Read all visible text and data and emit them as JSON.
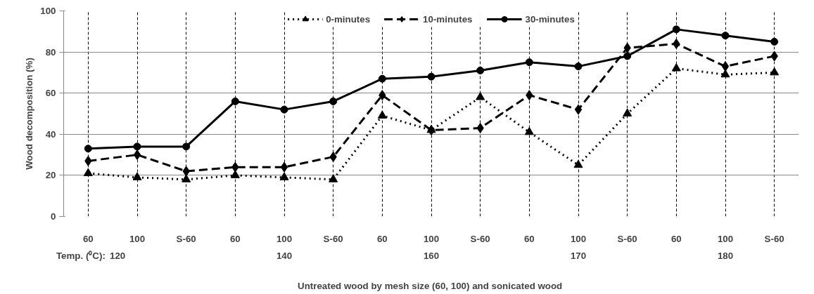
{
  "chart_data": {
    "type": "line",
    "xlabel": "Untreated wood by mesh size (60, 100) and sonicated  wood",
    "ylabel": "Wood decomposition (%)",
    "categories": [
      "60",
      "100",
      "S-60",
      "60",
      "100",
      "S-60",
      "60",
      "100",
      "S-60",
      "60",
      "100",
      "S-60",
      "60",
      "100",
      "S-60"
    ],
    "series": [
      {
        "name": "0-minutes",
        "color": "#000000",
        "line_style": "dotted",
        "marker": "triangle",
        "values": [
          21,
          19,
          18,
          20,
          19,
          18,
          49,
          42,
          58,
          41,
          25,
          50,
          72,
          69,
          70
        ]
      },
      {
        "name": "10-minutes",
        "color": "#000000",
        "line_style": "dashed",
        "marker": "diamond",
        "values": [
          27,
          30,
          22,
          24,
          24,
          29,
          59,
          42,
          43,
          59,
          52,
          82,
          84,
          73,
          78
        ]
      },
      {
        "name": "30-minutes",
        "color": "#000000",
        "line_style": "solid",
        "marker": "circle",
        "values": [
          33,
          34,
          34,
          56,
          52,
          56,
          67,
          68,
          71,
          75,
          73,
          78,
          91,
          88,
          85
        ]
      }
    ],
    "ylim": [
      0,
      100
    ],
    "yticks": [
      0,
      20,
      40,
      60,
      80,
      100
    ],
    "grid": true,
    "legend": "top",
    "annotations": [
      "Temp. (⁰C):",
      "120",
      "140",
      "160",
      "170",
      "180"
    ]
  }
}
